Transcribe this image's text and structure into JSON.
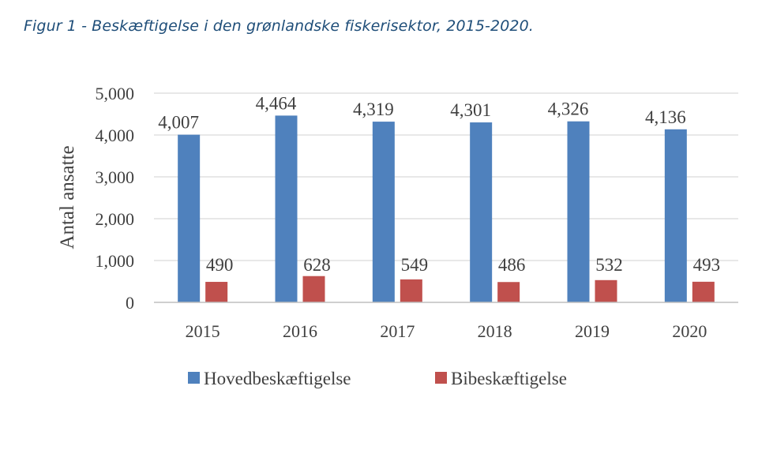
{
  "figure": {
    "title": "Figur 1 - Beskæftigelse i den grønlandske fiskerisektor, 2015-2020."
  },
  "chart_data": {
    "type": "bar",
    "title": "",
    "xlabel": "",
    "ylabel": "Antal ansatte",
    "categories": [
      "2015",
      "2016",
      "2017",
      "2018",
      "2019",
      "2020"
    ],
    "series": [
      {
        "name": "Hovedbeskæftigelse",
        "color": "#4f81bd",
        "values": [
          4007,
          4464,
          4319,
          4301,
          4326,
          4136
        ],
        "labels": [
          "4,007",
          "4,464",
          "4,319",
          "4,301",
          "4,326",
          "4,136"
        ]
      },
      {
        "name": "Bibeskæftigelse",
        "color": "#c0504d",
        "values": [
          490,
          628,
          549,
          486,
          532,
          493
        ],
        "labels": [
          "490",
          "628",
          "549",
          "486",
          "532",
          "493"
        ]
      }
    ],
    "ylim": [
      0,
      5000
    ],
    "yticks": [
      0,
      1000,
      2000,
      3000,
      4000,
      5000
    ],
    "ytick_labels": [
      "0",
      "1,000",
      "2,000",
      "3,000",
      "4,000",
      "5,000"
    ],
    "grid": true,
    "legend_position": "bottom"
  }
}
